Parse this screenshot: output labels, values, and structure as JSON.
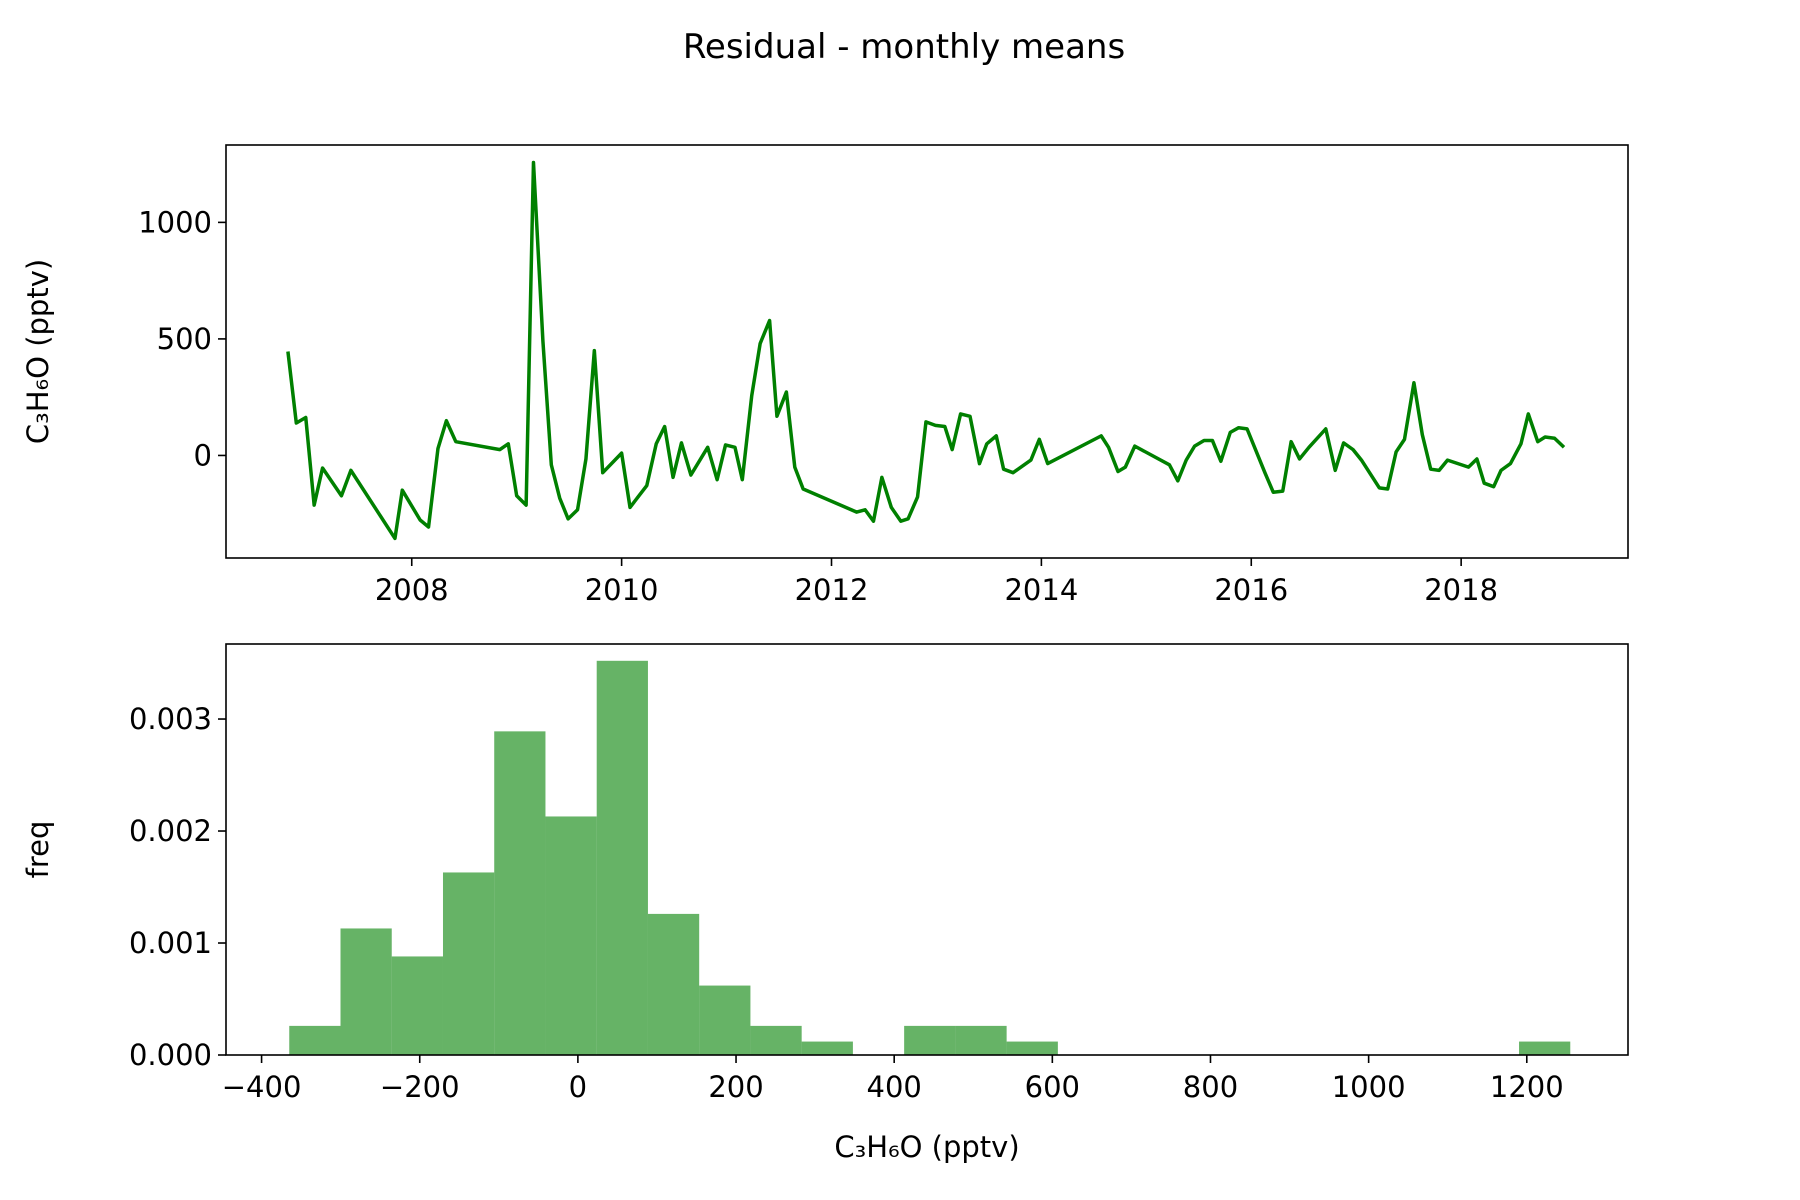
{
  "title": "Residual - monthly means",
  "chart_data": [
    {
      "type": "line",
      "ylabel": "C₃H₆O (pptv)",
      "color": "#008000",
      "x": [
        2006.82,
        2006.9,
        2006.99,
        2007.07,
        2007.15,
        2007.33,
        2007.42,
        2007.84,
        2007.91,
        2008.08,
        2008.16,
        2008.25,
        2008.33,
        2008.42,
        2008.84,
        2008.92,
        2009.0,
        2009.09,
        2009.16,
        2009.25,
        2009.33,
        2009.41,
        2009.49,
        2009.58,
        2009.66,
        2009.74,
        2009.82,
        2010.0,
        2010.08,
        2010.24,
        2010.33,
        2010.41,
        2010.49,
        2010.57,
        2010.66,
        2010.82,
        2010.91,
        2010.99,
        2011.08,
        2011.15,
        2011.24,
        2011.32,
        2011.41,
        2011.48,
        2011.57,
        2011.65,
        2011.73,
        2012.24,
        2012.32,
        2012.4,
        2012.48,
        2012.57,
        2012.66,
        2012.73,
        2012.82,
        2012.9,
        2012.99,
        2013.08,
        2013.15,
        2013.23,
        2013.32,
        2013.41,
        2013.48,
        2013.57,
        2013.64,
        2013.73,
        2013.9,
        2013.98,
        2014.06,
        2014.57,
        2014.64,
        2014.73,
        2014.8,
        2014.89,
        2015.22,
        2015.3,
        2015.38,
        2015.46,
        2015.55,
        2015.63,
        2015.71,
        2015.8,
        2015.88,
        2015.96,
        2016.13,
        2016.21,
        2016.3,
        2016.38,
        2016.46,
        2016.55,
        2016.71,
        2016.8,
        2016.88,
        2016.97,
        2017.05,
        2017.22,
        2017.3,
        2017.38,
        2017.46,
        2017.55,
        2017.63,
        2017.71,
        2017.79,
        2017.87,
        2018.07,
        2018.15,
        2018.22,
        2018.31,
        2018.38,
        2018.47,
        2018.57,
        2018.64,
        2018.73,
        2018.8,
        2018.89,
        2018.98
      ],
      "values": [
        446,
        139,
        163,
        -213,
        -54,
        -173,
        -64,
        -356,
        -149,
        -277,
        -307,
        30,
        149,
        59,
        25,
        50,
        -173,
        -213,
        1257,
        490,
        -40,
        -183,
        -272,
        -233,
        -15,
        450,
        -74,
        10,
        -223,
        -129,
        50,
        124,
        -94,
        54,
        -84,
        35,
        -104,
        45,
        35,
        -104,
        257,
        480,
        579,
        168,
        272,
        -50,
        -144,
        -243,
        -233,
        -282,
        -94,
        -223,
        -282,
        -272,
        -178,
        144,
        129,
        124,
        25,
        178,
        168,
        -35,
        50,
        84,
        -59,
        -74,
        -20,
        69,
        -35,
        84,
        35,
        -69,
        -50,
        40,
        -40,
        -109,
        -20,
        40,
        64,
        64,
        -25,
        99,
        119,
        114,
        -74,
        -158,
        -153,
        59,
        -15,
        35,
        114,
        -64,
        54,
        25,
        -20,
        -139,
        -144,
        15,
        69,
        312,
        89,
        -59,
        -64,
        -20,
        -50,
        -15,
        -119,
        -134,
        -64,
        -35,
        50,
        178,
        59,
        79,
        74,
        35
      ],
      "xlim": [
        2006.23,
        2019.59
      ],
      "xticks": [
        2008,
        2010,
        2012,
        2014,
        2016,
        2018
      ],
      "ylim": [
        -440,
        1332
      ],
      "yticks": [
        0,
        500,
        1000
      ]
    },
    {
      "type": "histogram",
      "xlabel": "C₃H₆O (pptv)",
      "ylabel": "freq",
      "color": "#008000",
      "alpha": 0.6,
      "bins": [
        -365,
        -300.2,
        -235.4,
        -170.6,
        -105.8,
        -41,
        23.8,
        88.6,
        153.4,
        218.2,
        283,
        347.8,
        412.6,
        477.4,
        542.2,
        607,
        671.8,
        736.6,
        801.4,
        866.2,
        931,
        995.8,
        1060.6,
        1125.4,
        1190.2,
        1255
      ],
      "values": [
        0.00026,
        0.00113,
        0.00088,
        0.00163,
        0.00289,
        0.00213,
        0.00352,
        0.00126,
        0.00062,
        0.00026,
        0.00012,
        0,
        0.00026,
        0.00026,
        0.00012,
        0,
        0,
        0,
        0,
        0,
        0,
        0,
        0,
        0,
        0.00012
      ],
      "xlim": [
        -445,
        1328
      ],
      "xticks": [
        {
          "value": -400,
          "label": "−400"
        },
        {
          "value": -200,
          "label": "−200"
        },
        0,
        200,
        400,
        600,
        800,
        1000,
        1200
      ],
      "ylim": [
        0,
        0.00367
      ],
      "yticks": [
        {
          "value": 0,
          "label": "0.000"
        },
        {
          "value": 0.001,
          "label": "0.001"
        },
        {
          "value": 0.002,
          "label": "0.002"
        },
        {
          "value": 0.003,
          "label": "0.003"
        }
      ]
    }
  ]
}
